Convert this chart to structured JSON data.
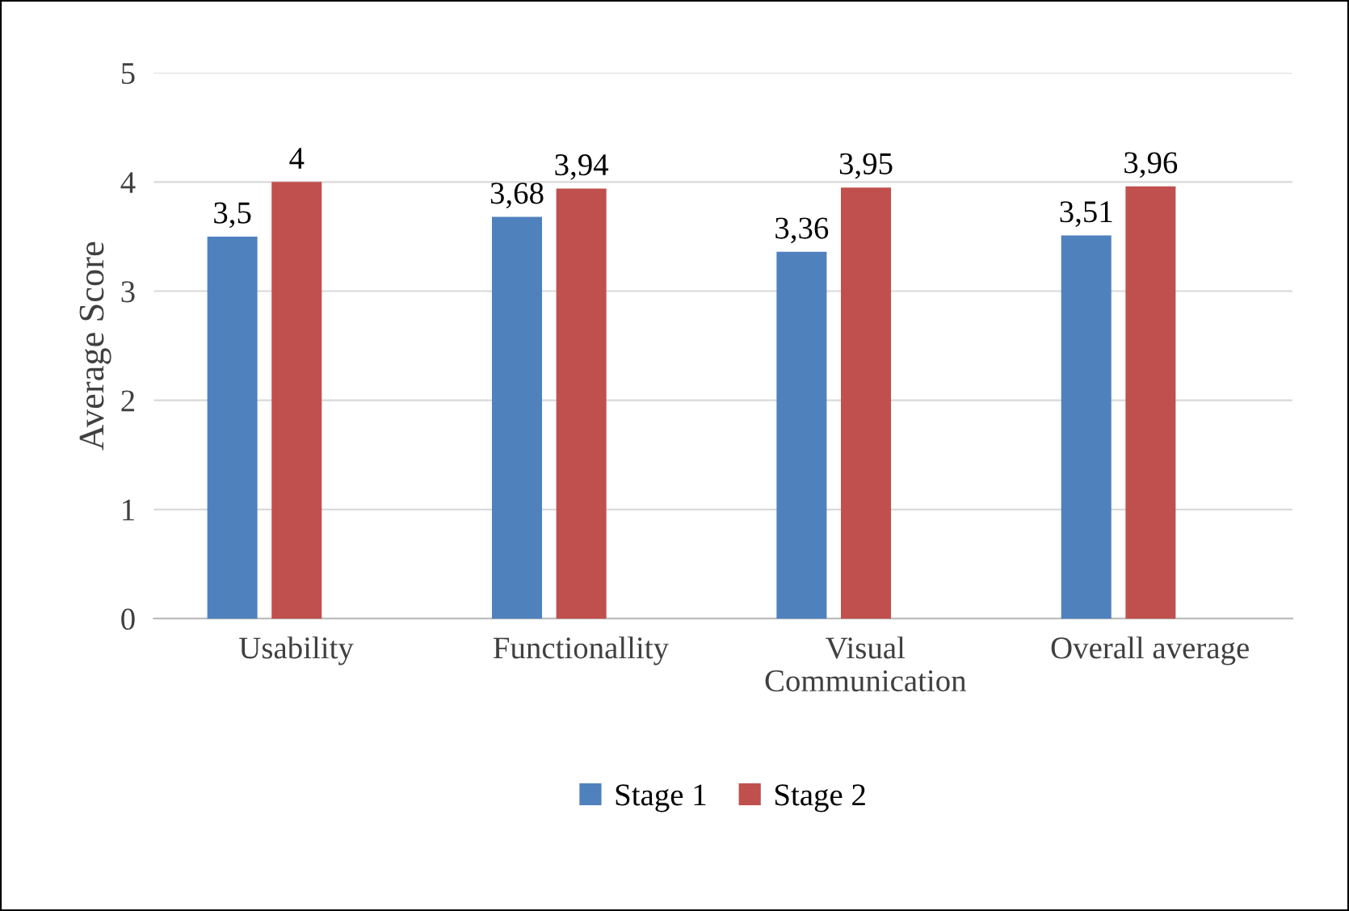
{
  "chart_data": {
    "type": "bar",
    "ylabel": "Average Score",
    "categories": [
      "Usability",
      "Functionallity",
      "Visual\nCommunication",
      "Overall average"
    ],
    "series": [
      {
        "name": "Stage 1",
        "color": "#4f81bd",
        "values": [
          3.5,
          3.68,
          3.36,
          3.51
        ],
        "value_labels": [
          "3,5",
          "3,68",
          "3,36",
          "3,51"
        ]
      },
      {
        "name": "Stage 2",
        "color": "#c0504d",
        "values": [
          4,
          3.94,
          3.95,
          3.96
        ],
        "value_labels": [
          "4",
          "3,94",
          "3,95",
          "3,96"
        ]
      }
    ],
    "ylim": [
      0,
      5
    ],
    "yticks": [
      0,
      1,
      2,
      3,
      4,
      5
    ],
    "grid": "y",
    "legend": "bottom"
  }
}
